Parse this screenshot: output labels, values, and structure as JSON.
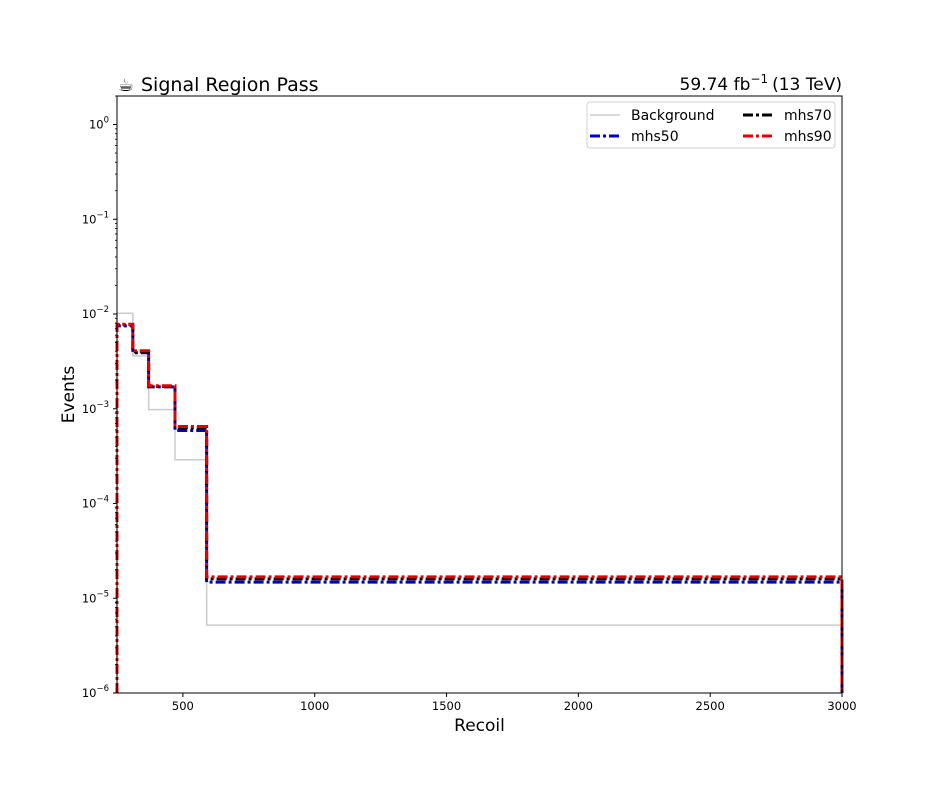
{
  "chart_data": {
    "type": "line",
    "title": "Signal Region Pass",
    "title_icon": "coffee-cup-icon",
    "lumi": {
      "value": "59.74 fb",
      "exponent": "−1",
      "energy": "(13 TeV)"
    },
    "xlabel": "Recoil",
    "ylabel": "Events",
    "xlim": [
      250,
      3000
    ],
    "ylim": [
      1e-06,
      2
    ],
    "yscale": "log",
    "xticks": [
      500,
      1000,
      1500,
      2000,
      2500,
      3000
    ],
    "xtick_labels": [
      "500",
      "1000",
      "1500",
      "2000",
      "2500",
      "3000"
    ],
    "yticks": [
      {
        "value": 1e-06,
        "base": "10",
        "exp": "−6"
      },
      {
        "value": 1e-05,
        "base": "10",
        "exp": "−5"
      },
      {
        "value": 0.0001,
        "base": "10",
        "exp": "−4"
      },
      {
        "value": 0.001,
        "base": "10",
        "exp": "−3"
      },
      {
        "value": 0.01,
        "base": "10",
        "exp": "−2"
      },
      {
        "value": 0.1,
        "base": "10",
        "exp": "−1"
      },
      {
        "value": 1,
        "base": "10",
        "exp": "0"
      }
    ],
    "bin_edges": [
      250,
      310,
      370,
      470,
      590,
      3000
    ],
    "series": [
      {
        "name": "Background",
        "color": "#cccccc",
        "style": "solid",
        "values": [
          0.0102,
          0.0036,
          0.00098,
          0.00029,
          5.2e-06
        ]
      },
      {
        "name": "mhs50",
        "color": "#0000cc",
        "style": "dashdot",
        "values": [
          0.0075,
          0.0039,
          0.0017,
          0.00059,
          1.48e-05
        ]
      },
      {
        "name": "mhs70",
        "color": "#000000",
        "style": "dashdot",
        "values": [
          0.0077,
          0.004,
          0.00172,
          0.00063,
          1.6e-05
        ]
      },
      {
        "name": "mhs90",
        "color": "#e80000",
        "style": "dashdot",
        "values": [
          0.0078,
          0.0041,
          0.00175,
          0.00065,
          1.68e-05
        ]
      }
    ],
    "legend": {
      "position": "top-right",
      "columns": 2
    },
    "grid": false
  }
}
